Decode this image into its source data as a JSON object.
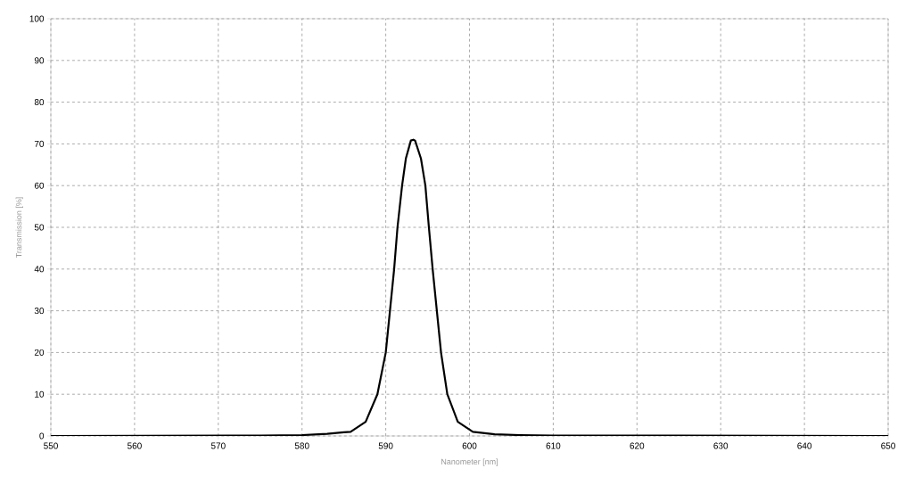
{
  "chart_data": {
    "type": "line",
    "xlabel": "Nanometer [nm]",
    "ylabel": "Transmission [%]",
    "x": [
      550,
      575,
      580,
      583,
      585,
      585.8,
      587.6,
      589.0,
      590.0,
      590.5,
      591.0,
      591.4,
      591.95,
      592.4,
      593.0,
      593.3,
      593.5,
      594.2,
      594.73,
      595.15,
      595.6,
      596.1,
      596.6,
      597.35,
      598.6,
      600.4,
      603,
      606,
      610,
      650
    ],
    "series": [
      {
        "color": "#000000",
        "values": [
          0,
          0.1,
          0.2,
          0.5,
          0.9,
          1,
          3.4,
          10,
          20,
          30,
          40,
          50,
          60,
          66.5,
          70.8,
          71,
          70.8,
          66.5,
          60,
          50,
          40,
          30,
          20,
          10,
          3.4,
          1,
          0.4,
          0.2,
          0.1,
          0
        ]
      }
    ],
    "xlim": [
      550,
      650
    ],
    "ylim": [
      0,
      100
    ],
    "xticks": [
      550,
      560,
      570,
      580,
      590,
      600,
      610,
      620,
      630,
      640,
      650
    ],
    "yticks": [
      0,
      10,
      20,
      30,
      40,
      50,
      60,
      70,
      80,
      90,
      100
    ],
    "grid": true,
    "marker": "none",
    "line_style": "solid"
  }
}
